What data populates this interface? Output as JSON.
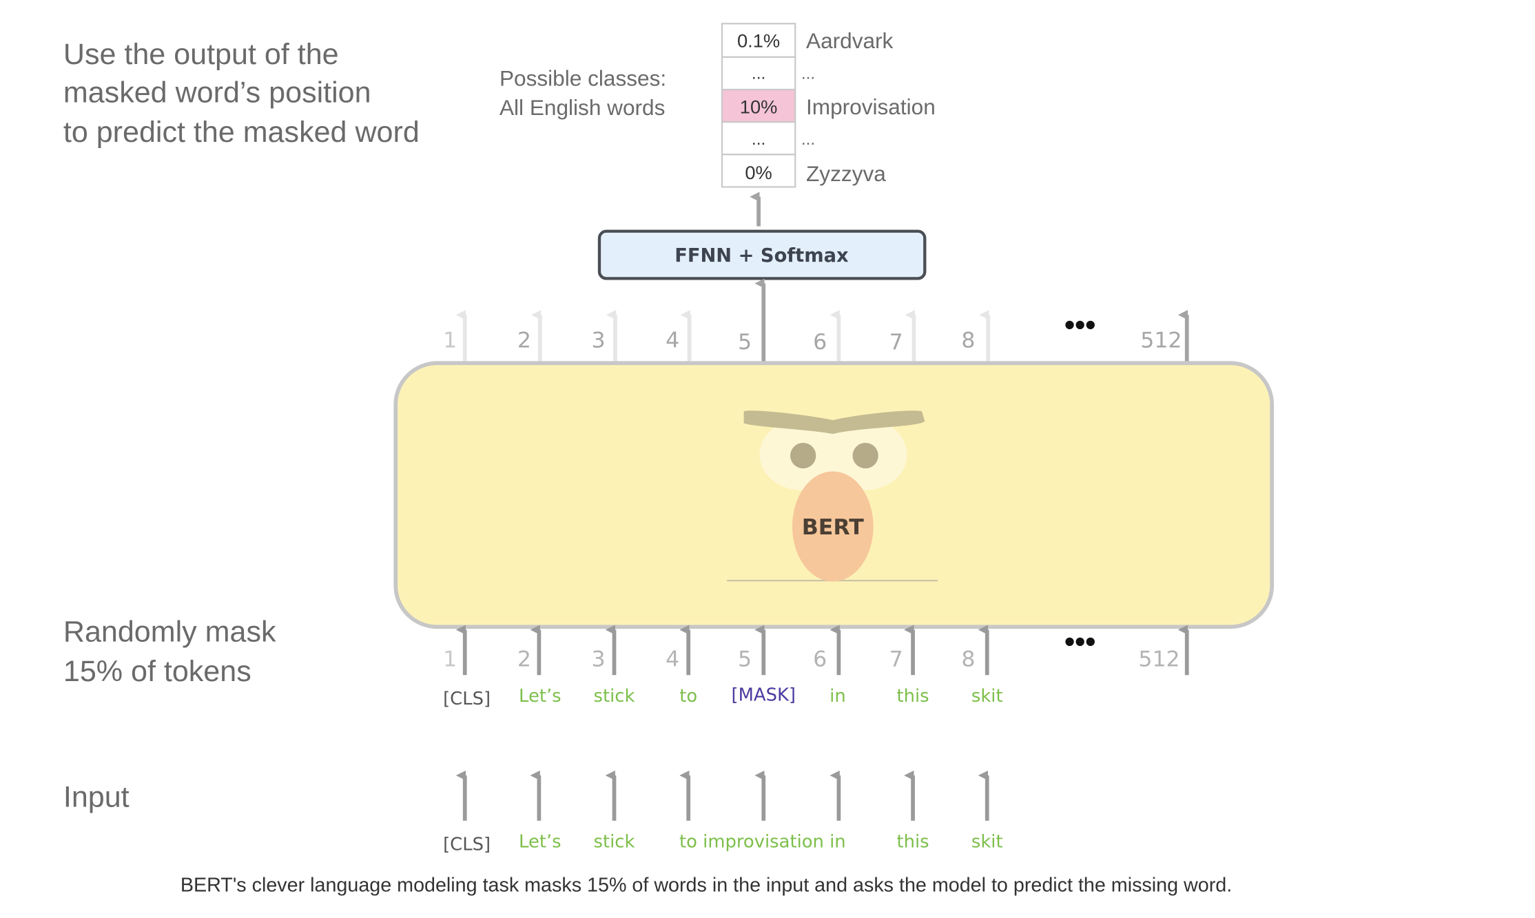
{
  "left_notes": {
    "output_step": [
      "Use the output of the",
      "masked word’s position",
      "to predict the masked word"
    ],
    "mask_step": [
      "Randomly mask",
      "15% of tokens"
    ],
    "input_step": "Input"
  },
  "classes_label": [
    "Possible classes:",
    "All English words"
  ],
  "output_table": [
    {
      "prob": "0.1%",
      "word": "Aardvark",
      "highlight": false
    },
    {
      "prob": "...",
      "word": "...",
      "highlight": false
    },
    {
      "prob": "10%",
      "word": "Improvisation",
      "highlight": true
    },
    {
      "prob": "...",
      "word": "...",
      "highlight": false
    },
    {
      "prob": "0%",
      "word": "Zyzzyva",
      "highlight": false
    }
  ],
  "ffnn_label": "FFNN + Softmax",
  "model_label": "BERT",
  "positions": [
    "1",
    "2",
    "3",
    "4",
    "5",
    "6",
    "7",
    "8",
    "512"
  ],
  "ellipsis": "•••",
  "masked_tokens": [
    "[CLS]",
    "Let’s",
    "stick",
    "to",
    "[MASK]",
    "in",
    "this",
    "skit"
  ],
  "input_tokens": [
    "[CLS]",
    "Let’s",
    "stick",
    "to improvisation in",
    "this",
    "skit"
  ],
  "caption": "BERT's clever language modeling task masks 15% of words in the input and asks the model to predict the missing word.",
  "colors": {
    "token_green": "#7dbf4a",
    "mask_purple": "#4a3aa0",
    "cls_gray": "#555555",
    "highlight_pink": "#f5c4d6",
    "bert_yellow": "#fdf2b6",
    "ffnn_blue": "#e3effa"
  }
}
